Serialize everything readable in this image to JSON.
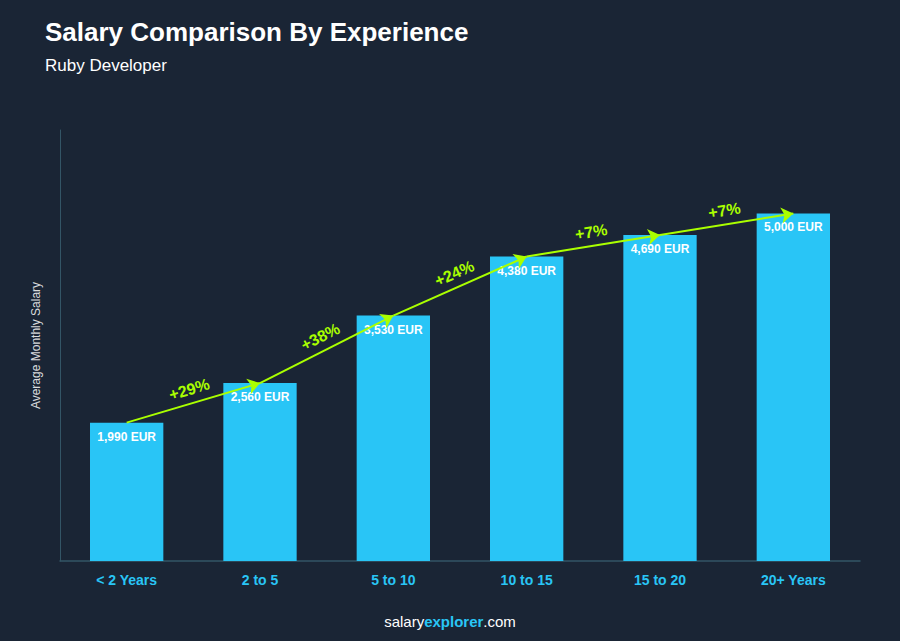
{
  "chart_data": {
    "type": "bar",
    "title": "Salary Comparison By Experience",
    "subtitle": "Ruby Developer",
    "ylabel": "Average Monthly Salary",
    "categories": [
      "< 2 Years",
      "2 to 5",
      "5 to 10",
      "10 to 15",
      "15 to 20",
      "20+ Years"
    ],
    "values": [
      1990,
      2560,
      3530,
      4380,
      4690,
      5000
    ],
    "value_labels": [
      "1,990 EUR",
      "2,560 EUR",
      "3,530 EUR",
      "4,380 EUR",
      "4,690 EUR",
      "5,000 EUR"
    ],
    "data_labels": true,
    "pct_changes": [
      null,
      "+29%",
      "+38%",
      "+24%",
      "+7%",
      "+7%"
    ],
    "annotation_color": "#aaff00",
    "color": "#29c5f6",
    "background_color": "#1a2535",
    "ylim": [
      0,
      6200
    ],
    "tick_labels": "x",
    "grid": false,
    "footer": [
      "salary",
      "explorer",
      ".com"
    ]
  }
}
